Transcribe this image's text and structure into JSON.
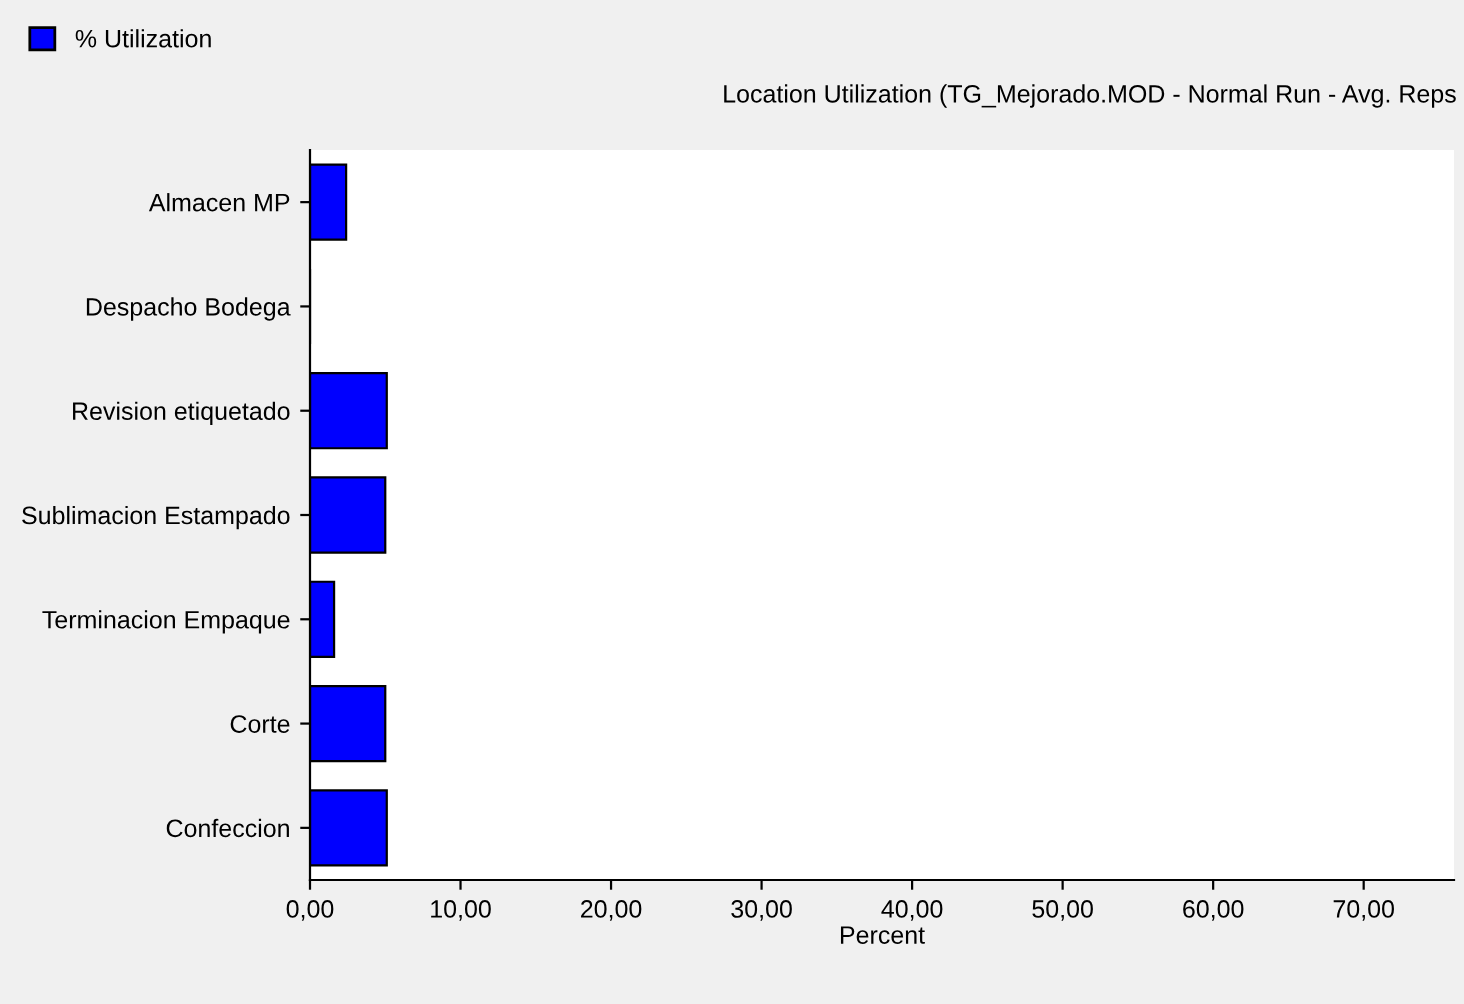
{
  "chart_data": {
    "type": "bar",
    "orientation": "horizontal",
    "title": "Location Utilization (TG_Mejorado.MOD - Normal Run - Avg. Reps",
    "xlabel": "Percent",
    "categories": [
      "Almacen MP",
      "Despacho Bodega",
      "Revision etiquetado",
      "Sublimacion Estampado",
      "Terminacion Empaque",
      "Corte",
      "Confeccion"
    ],
    "series": [
      {
        "name": "% Utilization",
        "color": "#0000ff",
        "values": [
          2.4,
          0,
          5.1,
          5.0,
          1.6,
          5.0,
          5.1
        ]
      }
    ],
    "xlim": [
      0,
      76
    ],
    "xticks": [
      {
        "value": 0,
        "label": "0,00"
      },
      {
        "value": 10,
        "label": "10,00"
      },
      {
        "value": 20,
        "label": "20,00"
      },
      {
        "value": 30,
        "label": "30,00"
      },
      {
        "value": 40,
        "label": "40,00"
      },
      {
        "value": 50,
        "label": "50,00"
      },
      {
        "value": 60,
        "label": "60,00"
      },
      {
        "value": 70,
        "label": "70,00"
      }
    ],
    "grid": false,
    "legend": "top left"
  }
}
